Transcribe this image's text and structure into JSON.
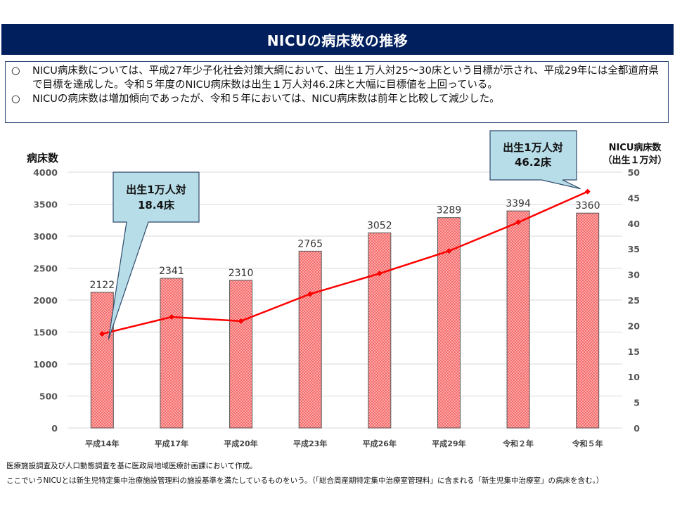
{
  "header": {
    "title": "NICUの病床数の推移"
  },
  "summary": {
    "bullets": [
      {
        "mark": "○",
        "text": "NICU病床数については、平成27年少子化社会対策大綱において、出生１万人対25～30床という目標が示され、平成29年には全都道府県で目標を達成した。令和５年度のNICU病床数は出生１万人対46.2床と大幅に目標値を上回っている。"
      },
      {
        "mark": "○",
        "text": "NICUの病床数は増加傾向であったが、令和５年においては、NICU病床数は前年と比較して減少した。"
      }
    ]
  },
  "chart_data": {
    "type": "bar",
    "title": "",
    "categories": [
      "平成14年",
      "平成17年",
      "平成20年",
      "平成23年",
      "平成26年",
      "平成29年",
      "令和２年",
      "令和５年"
    ],
    "series": [
      {
        "name": "病床数",
        "type": "bar",
        "axis": "left",
        "values": [
          2122,
          2341,
          2310,
          2765,
          3052,
          3289,
          3394,
          3360
        ],
        "color": "#f26b6b"
      },
      {
        "name": "NICU病床数（出生１万対）",
        "type": "line",
        "axis": "right",
        "values": [
          18.4,
          21.7,
          20.9,
          26.2,
          30.2,
          34.6,
          40.2,
          46.2
        ],
        "color": "#ff0000"
      }
    ],
    "ylabel": "病床数",
    "ylim": [
      0,
      4000
    ],
    "yticks": [
      0,
      500,
      1000,
      1500,
      2000,
      2500,
      3000,
      3500,
      4000
    ],
    "y2label": [
      "NICU病床数",
      "（出生１万対）"
    ],
    "y2lim": [
      0,
      50
    ],
    "y2ticks": [
      0,
      5,
      10,
      15,
      20,
      25,
      30,
      35,
      40,
      45,
      50
    ],
    "grid": true,
    "legend": "none",
    "annotations": [
      {
        "lines": [
          "出生1万人対",
          "18.4床"
        ],
        "target_index": 0,
        "fill": "#b7dde8"
      },
      {
        "lines": [
          "出生1万人対",
          "46.2床"
        ],
        "target_index": 7,
        "fill": "#b7dde8"
      }
    ]
  },
  "notes": [
    "医療施設調査及び人口動態調査を基に医政局地域医療計画課において作成。",
    "ここでいうNICUとは新生児特定集中治療施設管理料の施設基準を満たしているものをいう。（「総合周産期特定集中治療室管理料」に含まれる「新生児集中治療室」の病床を含む。）"
  ]
}
